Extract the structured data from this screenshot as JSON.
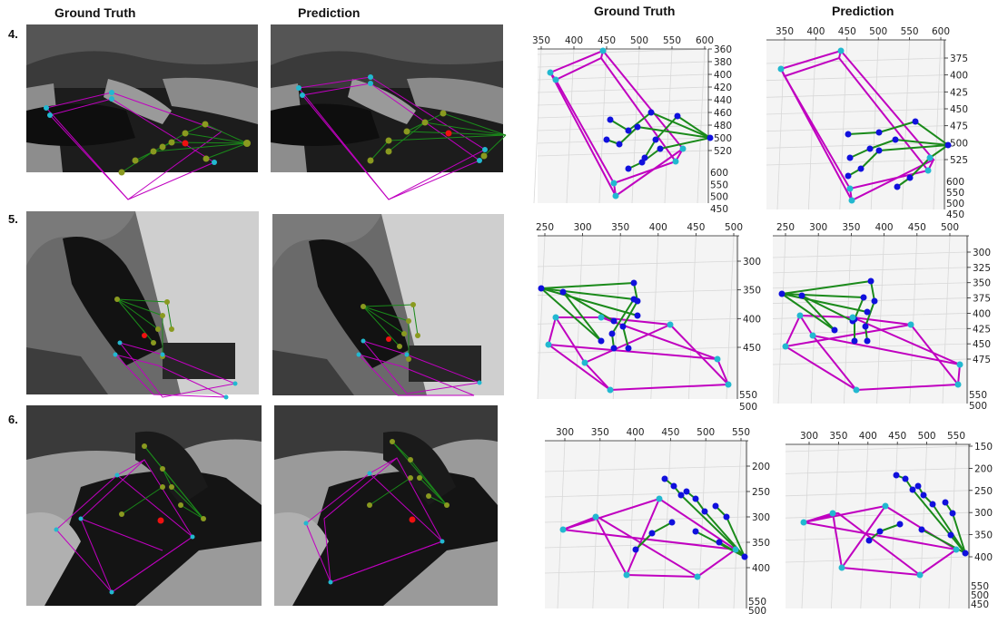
{
  "headers": {
    "left_gt": "Ground Truth",
    "left_pred": "Prediction",
    "right_gt": "Ground Truth",
    "right_pred": "Prediction"
  },
  "rows": [
    {
      "label": "4.",
      "gt3d": {
        "xticks": [
          "350",
          "400",
          "450",
          "500",
          "550",
          "600"
        ],
        "yticks": [
          "360",
          "380",
          "400",
          "420",
          "440",
          "460",
          "480",
          "500",
          "520"
        ],
        "zticks": [
          "600",
          "550",
          "500",
          "450"
        ]
      },
      "pred3d": {
        "xticks": [
          "350",
          "400",
          "450",
          "500",
          "550",
          "600"
        ],
        "yticks": [
          "375",
          "400",
          "425",
          "450",
          "475",
          "500",
          "525"
        ],
        "zticks": [
          "600",
          "550",
          "500",
          "450"
        ]
      }
    },
    {
      "label": "5.",
      "gt3d": {
        "xticks": [
          "250",
          "300",
          "350",
          "400",
          "450",
          "500"
        ],
        "yticks": [
          "300",
          "350",
          "400",
          "450"
        ],
        "zticks": [
          "550",
          "500"
        ]
      },
      "pred3d": {
        "xticks": [
          "250",
          "300",
          "350",
          "400",
          "450",
          "500"
        ],
        "yticks": [
          "300",
          "325",
          "350",
          "375",
          "400",
          "425",
          "450",
          "475"
        ],
        "zticks": [
          "550",
          "500"
        ]
      }
    },
    {
      "label": "6.",
      "gt3d": {
        "xticks": [
          "300",
          "350",
          "400",
          "450",
          "500",
          "550"
        ],
        "yticks": [
          "200",
          "250",
          "300",
          "350",
          "400"
        ],
        "zticks": [
          "550",
          "500"
        ]
      },
      "pred3d": {
        "xticks": [
          "300",
          "350",
          "400",
          "450",
          "500",
          "550"
        ],
        "yticks": [
          "150",
          "200",
          "250",
          "300",
          "350",
          "400"
        ],
        "zticks": [
          "550",
          "500",
          "450"
        ]
      }
    }
  ],
  "colors": {
    "box": "#c000c0",
    "skeleton": "#1a8a1a",
    "joint_blue": "#1010dd",
    "joint_cyan": "#22b8d0",
    "joint_olive": "#8a9a20",
    "center_red": "#ee1111"
  }
}
